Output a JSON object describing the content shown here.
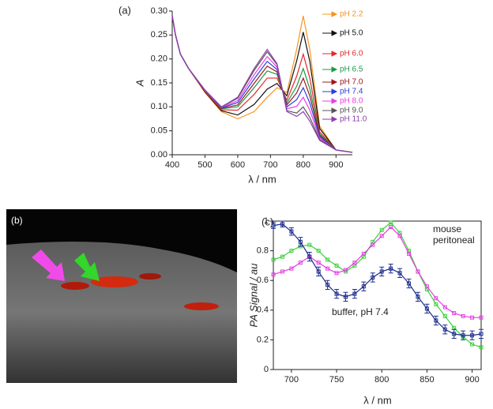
{
  "chart_data": [
    {
      "type": "line",
      "panel_label": "(a)",
      "x_label": "λ / nm",
      "y_label": "A",
      "x": [
        400,
        410,
        425,
        450,
        500,
        550,
        600,
        650,
        690,
        720,
        750,
        780,
        800,
        820,
        850,
        900,
        950
      ],
      "xlim": [
        400,
        950
      ],
      "xticks": [
        400,
        500,
        600,
        700,
        800,
        900
      ],
      "ylim": [
        0,
        0.3
      ],
      "yticks": [
        {
          "value": 0,
          "label": "0.00"
        },
        {
          "value": 0.05,
          "label": "0.05"
        },
        {
          "value": 0.1,
          "label": "0.10"
        },
        {
          "value": 0.15,
          "label": "0.15"
        },
        {
          "value": 0.2,
          "label": "0.20"
        },
        {
          "value": 0.25,
          "label": "0.25"
        },
        {
          "value": 0.3,
          "label": "0.30"
        }
      ],
      "series": [
        {
          "name": "pH 2.2",
          "color": "#f7941d",
          "values": [
            0.29,
            0.25,
            0.21,
            0.18,
            0.13,
            0.09,
            0.075,
            0.09,
            0.12,
            0.14,
            0.13,
            0.22,
            0.29,
            0.22,
            0.06,
            0.01,
            0.005
          ]
        },
        {
          "name": "pH 5.0",
          "color": "#111111",
          "values": [
            0.29,
            0.25,
            0.21,
            0.18,
            0.131,
            0.092,
            0.083,
            0.105,
            0.137,
            0.149,
            0.123,
            0.196,
            0.256,
            0.195,
            0.055,
            0.01,
            0.005
          ]
        },
        {
          "name": "pH 6.0",
          "color": "#e8262a",
          "values": [
            0.29,
            0.25,
            0.21,
            0.18,
            0.132,
            0.094,
            0.093,
            0.126,
            0.16,
            0.16,
            0.114,
            0.164,
            0.21,
            0.16,
            0.048,
            0.01,
            0.005
          ]
        },
        {
          "name": "pH 6.5",
          "color": "#1a9a4a",
          "values": [
            0.29,
            0.25,
            0.21,
            0.18,
            0.133,
            0.096,
            0.1,
            0.14,
            0.175,
            0.168,
            0.108,
            0.143,
            0.18,
            0.138,
            0.044,
            0.01,
            0.005
          ]
        },
        {
          "name": "pH 7.0",
          "color": "#a0161c",
          "values": [
            0.29,
            0.25,
            0.21,
            0.18,
            0.133,
            0.097,
            0.104,
            0.149,
            0.185,
            0.173,
            0.104,
            0.129,
            0.16,
            0.123,
            0.041,
            0.01,
            0.005
          ]
        },
        {
          "name": "pH 7.4",
          "color": "#2b3de0",
          "values": [
            0.29,
            0.25,
            0.21,
            0.18,
            0.134,
            0.098,
            0.109,
            0.158,
            0.195,
            0.178,
            0.1,
            0.115,
            0.14,
            0.108,
            0.038,
            0.01,
            0.005
          ]
        },
        {
          "name": "pH 8.0",
          "color": "#ec3ce6",
          "values": [
            0.29,
            0.25,
            0.21,
            0.18,
            0.134,
            0.099,
            0.113,
            0.167,
            0.205,
            0.183,
            0.096,
            0.101,
            0.12,
            0.093,
            0.035,
            0.01,
            0.005
          ]
        },
        {
          "name": "pH 9.0",
          "color": "#555555",
          "values": [
            0.29,
            0.25,
            0.21,
            0.18,
            0.135,
            0.1,
            0.118,
            0.176,
            0.215,
            0.188,
            0.092,
            0.087,
            0.1,
            0.078,
            0.032,
            0.01,
            0.005
          ]
        },
        {
          "name": "pH 11.0",
          "color": "#8e3fae",
          "values": [
            0.29,
            0.25,
            0.21,
            0.18,
            0.135,
            0.1,
            0.12,
            0.18,
            0.22,
            0.19,
            0.09,
            0.08,
            0.09,
            0.07,
            0.03,
            0.01,
            0.005
          ]
        }
      ]
    },
    {
      "type": "line",
      "panel_label": "(c)",
      "x_label": "λ / nm",
      "y_label": "PA Signal / au",
      "annotations": [
        "mouse",
        "peritoneal",
        "buffer, pH 7.4"
      ],
      "x": [
        680,
        690,
        700,
        710,
        720,
        730,
        740,
        750,
        760,
        770,
        780,
        790,
        800,
        810,
        820,
        830,
        840,
        850,
        860,
        870,
        880,
        890,
        900,
        910
      ],
      "xlim": [
        680,
        910
      ],
      "xticks": [
        700,
        750,
        800,
        850,
        900
      ],
      "ylim": [
        0,
        1
      ],
      "yticks": [
        0,
        0.2,
        0.4,
        0.6,
        0.8,
        1
      ],
      "series": [
        {
          "color": "#3ad13a",
          "values": [
            0.74,
            0.76,
            0.8,
            0.83,
            0.84,
            0.8,
            0.74,
            0.7,
            0.66,
            0.7,
            0.76,
            0.86,
            0.94,
            0.99,
            0.92,
            0.8,
            0.66,
            0.54,
            0.44,
            0.36,
            0.28,
            0.22,
            0.17,
            0.15
          ]
        },
        {
          "color": "#e33ee0",
          "values": [
            0.64,
            0.66,
            0.68,
            0.72,
            0.76,
            0.72,
            0.68,
            0.65,
            0.67,
            0.72,
            0.78,
            0.84,
            0.9,
            0.96,
            0.9,
            0.78,
            0.66,
            0.56,
            0.48,
            0.42,
            0.38,
            0.36,
            0.35,
            0.35
          ]
        },
        {
          "color": "#1c2d8c",
          "values": [
            0.97,
            0.98,
            0.93,
            0.86,
            0.76,
            0.66,
            0.57,
            0.51,
            0.49,
            0.51,
            0.56,
            0.62,
            0.66,
            0.68,
            0.65,
            0.58,
            0.49,
            0.41,
            0.33,
            0.27,
            0.24,
            0.23,
            0.23,
            0.24
          ],
          "errors": [
            0.02,
            0.02,
            0.025,
            0.03,
            0.03,
            0.03,
            0.03,
            0.03,
            0.03,
            0.03,
            0.03,
            0.03,
            0.03,
            0.03,
            0.03,
            0.03,
            0.03,
            0.03,
            0.03,
            0.03,
            0.03,
            0.03,
            0.03,
            0.03
          ]
        }
      ]
    }
  ],
  "panel_b": {
    "label": "(b)"
  }
}
